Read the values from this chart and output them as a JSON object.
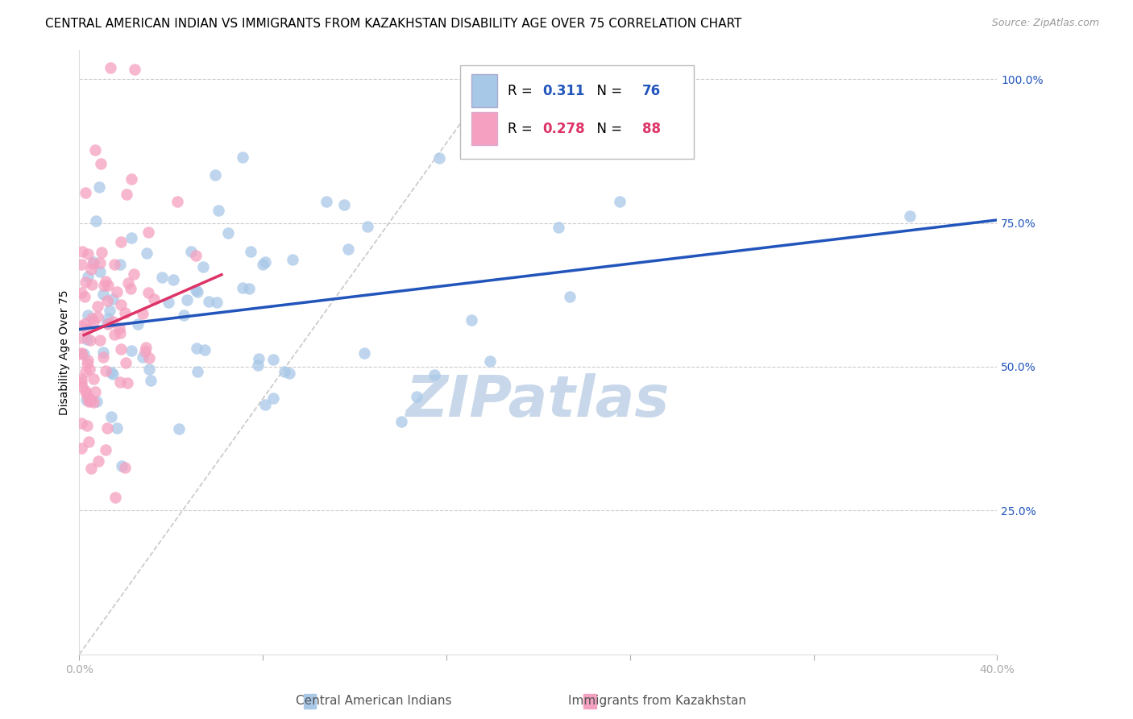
{
  "title": "CENTRAL AMERICAN INDIAN VS IMMIGRANTS FROM KAZAKHSTAN DISABILITY AGE OVER 75 CORRELATION CHART",
  "source": "Source: ZipAtlas.com",
  "ylabel": "Disability Age Over 75",
  "blue_R": 0.311,
  "blue_N": 76,
  "pink_R": 0.278,
  "pink_N": 88,
  "blue_color": "#a8c8e8",
  "blue_line_color": "#2255bb",
  "pink_color": "#f5a0c0",
  "pink_line_color": "#dd3366",
  "grid_color": "#cccccc",
  "watermark": "ZIPatlas",
  "watermark_color": "#c8d8ea",
  "legend_blue_label": "Central American Indians",
  "legend_pink_label": "Immigrants from Kazakhstan",
  "xmin": 0.0,
  "xmax": 0.4,
  "ymin": 0.0,
  "ymax": 1.05,
  "yticks": [
    0.25,
    0.5,
    0.75,
    1.0
  ],
  "ytick_labels": [
    "25.0%",
    "50.0%",
    "75.0%",
    "100.0%"
  ],
  "title_fontsize": 11,
  "source_fontsize": 9,
  "tick_fontsize": 10,
  "legend_fontsize": 12,
  "watermark_fontsize": 52,
  "figwidth": 14.06,
  "figheight": 8.92,
  "dpi": 100,
  "blue_trend_y0": 0.565,
  "blue_trend_y1": 0.755,
  "pink_trend_x0": 0.002,
  "pink_trend_x1": 0.062,
  "pink_trend_y0": 0.555,
  "pink_trend_y1": 0.66
}
